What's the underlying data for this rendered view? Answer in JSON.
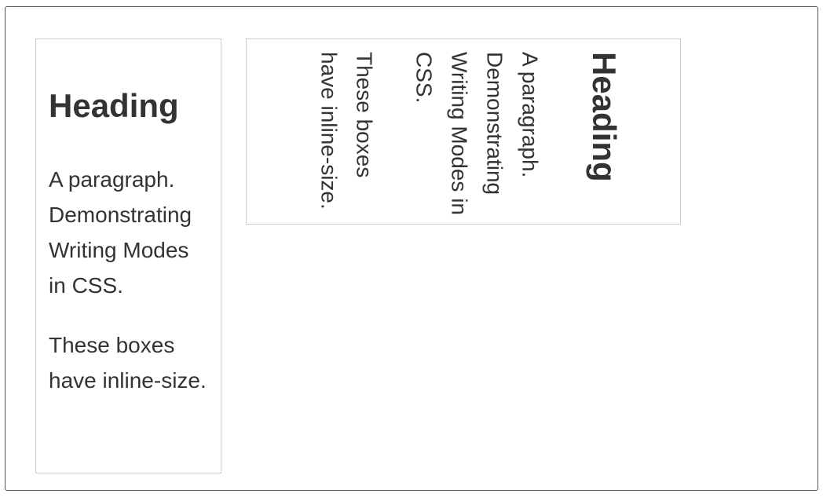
{
  "horizontal_box": {
    "heading": "Heading",
    "paragraph_1": "A paragraph. Demonstrating Writing Modes in CSS.",
    "paragraph_2": "These boxes have inline-size."
  },
  "vertical_box": {
    "heading": "Heading",
    "paragraph_1": "A paragraph. Demonstrating Writing Modes in CSS.",
    "paragraph_2": "These boxes have inline-size."
  }
}
